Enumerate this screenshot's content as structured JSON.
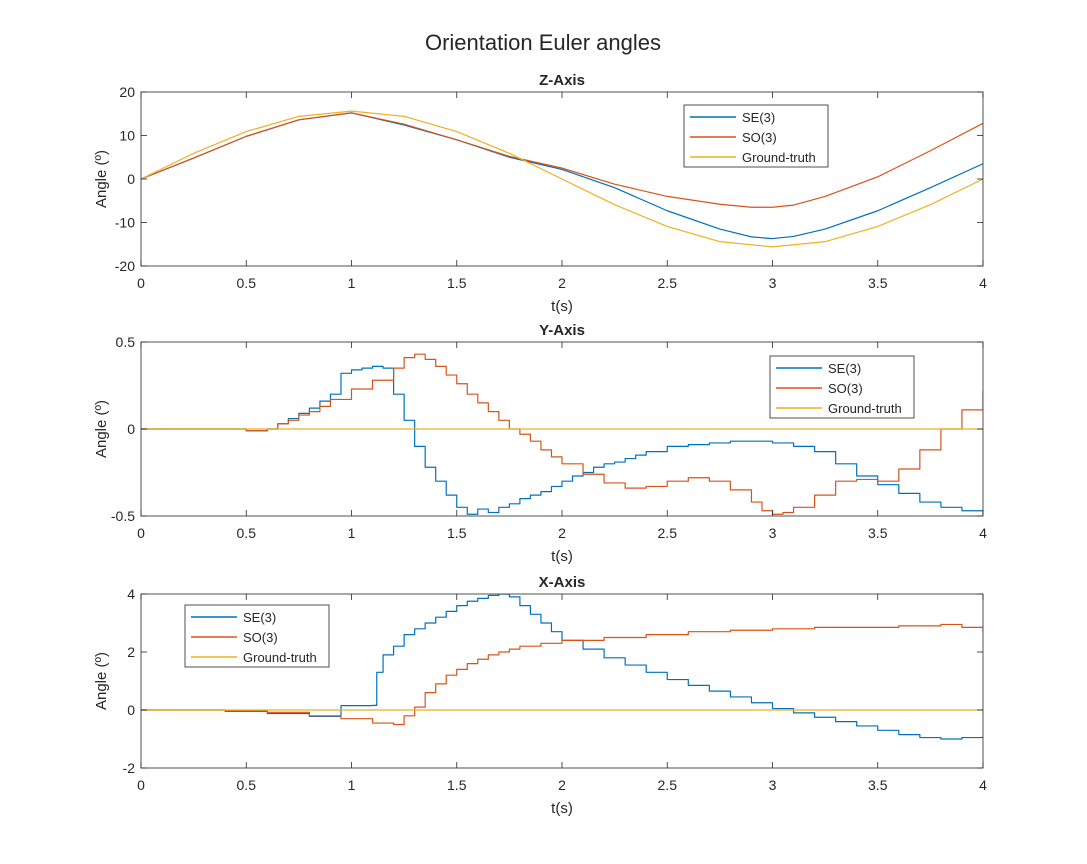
{
  "figure": {
    "title": "Orientation Euler angles"
  },
  "chart_data": [
    {
      "type": "line",
      "title": "Z-Axis",
      "xlabel": "t(s)",
      "ylabel": "Angle (º)",
      "xlim": [
        0,
        4
      ],
      "ylim": [
        -20,
        20
      ],
      "xticks": [
        0,
        0.5,
        1,
        1.5,
        2,
        2.5,
        3,
        3.5,
        4
      ],
      "xtick_labels": [
        "0",
        "0.5",
        "1",
        "1.5",
        "2",
        "2.5",
        "3",
        "3.5",
        "4"
      ],
      "yticks": [
        -20,
        -10,
        0,
        10,
        20
      ],
      "ytick_labels": [
        "-20",
        "-10",
        "0",
        "10",
        "20"
      ],
      "legend_position": "top-right",
      "series": [
        {
          "name": "SE(3)",
          "color": "#0072BD",
          "step": false,
          "x": [
            0,
            0.25,
            0.5,
            0.75,
            1,
            1.25,
            1.5,
            1.75,
            2,
            2.25,
            2.5,
            2.75,
            2.9,
            3,
            3.1,
            3.25,
            3.5,
            3.75,
            4
          ],
          "y": [
            0,
            4.8,
            9.8,
            13.6,
            15.2,
            12.4,
            9,
            5,
            2.2,
            -2,
            -7.3,
            -11.5,
            -13.3,
            -13.7,
            -13.2,
            -11.5,
            -7.3,
            -2,
            3.5
          ]
        },
        {
          "name": "SO(3)",
          "color": "#D95319",
          "step": false,
          "x": [
            0,
            0.25,
            0.5,
            0.75,
            1,
            1.25,
            1.5,
            1.75,
            2,
            2.25,
            2.5,
            2.75,
            2.9,
            3,
            3.1,
            3.25,
            3.5,
            3.75,
            4
          ],
          "y": [
            0,
            4.8,
            9.8,
            13.6,
            15.2,
            12.6,
            9,
            5.2,
            2.5,
            -1.2,
            -4,
            -5.8,
            -6.5,
            -6.5,
            -6,
            -4,
            0.5,
            6.5,
            12.8
          ]
        },
        {
          "name": "Ground-truth",
          "color": "#EDB120",
          "step": false,
          "x": [
            0,
            0.25,
            0.5,
            0.75,
            1,
            1.25,
            1.5,
            1.75,
            2,
            2.25,
            2.5,
            2.75,
            3,
            3.25,
            3.5,
            3.75,
            4
          ],
          "y": [
            0,
            5.9,
            10.9,
            14.4,
            15.6,
            14.4,
            10.9,
            5.9,
            0,
            -5.9,
            -10.9,
            -14.4,
            -15.6,
            -14.4,
            -10.9,
            -5.9,
            0
          ]
        }
      ]
    },
    {
      "type": "line",
      "title": "Y-Axis",
      "xlabel": "t(s)",
      "ylabel": "Angle (º)",
      "xlim": [
        0,
        4
      ],
      "ylim": [
        -0.5,
        0.5
      ],
      "xticks": [
        0,
        0.5,
        1,
        1.5,
        2,
        2.5,
        3,
        3.5,
        4
      ],
      "xtick_labels": [
        "0",
        "0.5",
        "1",
        "1.5",
        "2",
        "2.5",
        "3",
        "3.5",
        "4"
      ],
      "yticks": [
        -0.5,
        0,
        0.5
      ],
      "ytick_labels": [
        "-0.5",
        "0",
        "0.5"
      ],
      "legend_position": "top-right",
      "series": [
        {
          "name": "SE(3)",
          "color": "#0072BD",
          "step": true,
          "x": [
            0,
            0.25,
            0.5,
            0.6,
            0.65,
            0.7,
            0.75,
            0.8,
            0.85,
            0.9,
            0.95,
            1.0,
            1.05,
            1.1,
            1.15,
            1.2,
            1.25,
            1.3,
            1.35,
            1.4,
            1.45,
            1.5,
            1.55,
            1.6,
            1.65,
            1.7,
            1.75,
            1.8,
            1.85,
            1.9,
            1.95,
            2.0,
            2.05,
            2.1,
            2.15,
            2.2,
            2.25,
            2.3,
            2.35,
            2.4,
            2.5,
            2.6,
            2.7,
            2.8,
            2.9,
            3.0,
            3.1,
            3.2,
            3.3,
            3.4,
            3.5,
            3.6,
            3.7,
            3.8,
            3.9,
            4.0
          ],
          "y": [
            0,
            0,
            -0.01,
            0,
            0.03,
            0.06,
            0.09,
            0.12,
            0.16,
            0.2,
            0.32,
            0.34,
            0.35,
            0.36,
            0.35,
            0.2,
            0.05,
            -0.1,
            -0.22,
            -0.3,
            -0.38,
            -0.45,
            -0.49,
            -0.46,
            -0.48,
            -0.45,
            -0.43,
            -0.4,
            -0.38,
            -0.36,
            -0.33,
            -0.3,
            -0.27,
            -0.25,
            -0.22,
            -0.2,
            -0.19,
            -0.17,
            -0.15,
            -0.13,
            -0.1,
            -0.09,
            -0.08,
            -0.07,
            -0.07,
            -0.08,
            -0.1,
            -0.13,
            -0.2,
            -0.27,
            -0.32,
            -0.37,
            -0.42,
            -0.45,
            -0.47,
            -0.49
          ]
        },
        {
          "name": "SO(3)",
          "color": "#D95319",
          "step": true,
          "x": [
            0,
            0.25,
            0.5,
            0.6,
            0.65,
            0.7,
            0.75,
            0.8,
            0.85,
            0.9,
            1.0,
            1.1,
            1.2,
            1.25,
            1.3,
            1.35,
            1.4,
            1.45,
            1.5,
            1.55,
            1.6,
            1.65,
            1.7,
            1.75,
            1.8,
            1.85,
            1.9,
            1.95,
            2.0,
            2.1,
            2.2,
            2.3,
            2.4,
            2.5,
            2.6,
            2.7,
            2.8,
            2.9,
            2.95,
            3.0,
            3.05,
            3.1,
            3.2,
            3.3,
            3.4,
            3.5,
            3.6,
            3.7,
            3.8,
            3.9,
            4.0
          ],
          "y": [
            0,
            0,
            -0.01,
            0,
            0.03,
            0.05,
            0.08,
            0.1,
            0.13,
            0.17,
            0.23,
            0.28,
            0.35,
            0.41,
            0.43,
            0.4,
            0.36,
            0.31,
            0.26,
            0.2,
            0.15,
            0.1,
            0.05,
            0,
            -0.03,
            -0.07,
            -0.12,
            -0.16,
            -0.2,
            -0.26,
            -0.31,
            -0.34,
            -0.33,
            -0.3,
            -0.28,
            -0.3,
            -0.35,
            -0.42,
            -0.47,
            -0.49,
            -0.48,
            -0.45,
            -0.38,
            -0.3,
            -0.29,
            -0.3,
            -0.23,
            -0.12,
            0,
            0.11,
            0.22
          ]
        },
        {
          "name": "Ground-truth",
          "color": "#EDB120",
          "step": false,
          "x": [
            0,
            4
          ],
          "y": [
            0,
            0
          ]
        }
      ]
    },
    {
      "type": "line",
      "title": "X-Axis",
      "xlabel": "t(s)",
      "ylabel": "Angle (º)",
      "xlim": [
        0,
        4
      ],
      "ylim": [
        -2,
        4
      ],
      "xticks": [
        0,
        0.5,
        1,
        1.5,
        2,
        2.5,
        3,
        3.5,
        4
      ],
      "xtick_labels": [
        "0",
        "0.5",
        "1",
        "1.5",
        "2",
        "2.5",
        "3",
        "3.5",
        "4"
      ],
      "yticks": [
        -2,
        0,
        2,
        4
      ],
      "ytick_labels": [
        "-2",
        "0",
        "2",
        "4"
      ],
      "legend_position": "top-left",
      "series": [
        {
          "name": "SE(3)",
          "color": "#0072BD",
          "step": true,
          "x": [
            0,
            0.2,
            0.4,
            0.6,
            0.8,
            0.95,
            1.1,
            1.12,
            1.15,
            1.2,
            1.25,
            1.3,
            1.35,
            1.4,
            1.45,
            1.5,
            1.55,
            1.6,
            1.65,
            1.7,
            1.75,
            1.8,
            1.85,
            1.9,
            1.95,
            2.0,
            2.1,
            2.2,
            2.3,
            2.4,
            2.5,
            2.6,
            2.7,
            2.8,
            2.9,
            3.0,
            3.1,
            3.2,
            3.3,
            3.4,
            3.5,
            3.6,
            3.7,
            3.8,
            3.9,
            4.0
          ],
          "y": [
            0,
            0,
            -0.05,
            -0.12,
            -0.22,
            0.15,
            0.16,
            1.3,
            1.9,
            2.2,
            2.6,
            2.8,
            3.0,
            3.2,
            3.4,
            3.6,
            3.75,
            3.85,
            3.95,
            4.0,
            3.9,
            3.6,
            3.3,
            3.0,
            2.7,
            2.4,
            2.1,
            1.8,
            1.55,
            1.3,
            1.05,
            0.85,
            0.65,
            0.45,
            0.25,
            0.05,
            -0.1,
            -0.25,
            -0.4,
            -0.55,
            -0.7,
            -0.85,
            -0.95,
            -1.0,
            -0.95,
            -0.9
          ]
        },
        {
          "name": "SO(3)",
          "color": "#D95319",
          "step": true,
          "x": [
            0,
            0.2,
            0.4,
            0.6,
            0.8,
            0.95,
            1.1,
            1.2,
            1.25,
            1.3,
            1.35,
            1.4,
            1.45,
            1.5,
            1.55,
            1.6,
            1.65,
            1.7,
            1.75,
            1.8,
            1.9,
            2.0,
            2.2,
            2.4,
            2.6,
            2.8,
            3.0,
            3.2,
            3.4,
            3.6,
            3.8,
            3.9,
            4.0
          ],
          "y": [
            0,
            0,
            -0.03,
            -0.08,
            -0.2,
            -0.3,
            -0.45,
            -0.5,
            -0.2,
            0.1,
            0.6,
            0.9,
            1.2,
            1.4,
            1.6,
            1.75,
            1.9,
            2.0,
            2.1,
            2.2,
            2.3,
            2.4,
            2.5,
            2.6,
            2.7,
            2.75,
            2.8,
            2.85,
            2.85,
            2.9,
            2.95,
            2.85,
            2.7
          ]
        },
        {
          "name": "Ground-truth",
          "color": "#EDB120",
          "step": false,
          "x": [
            0,
            4
          ],
          "y": [
            0,
            0
          ]
        }
      ]
    }
  ]
}
